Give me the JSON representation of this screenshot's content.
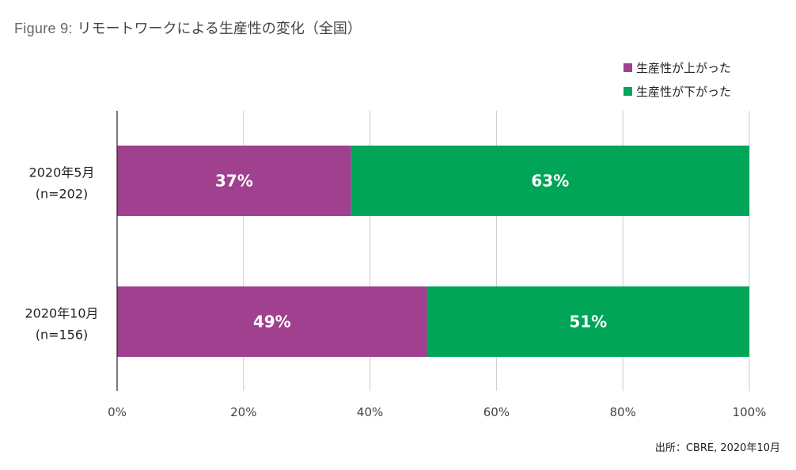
{
  "title": {
    "prefix": "Figure 9:",
    "text": "リモートワークによる生産性の変化（全国）"
  },
  "colors": {
    "up": "#a0408f",
    "down": "#00a558",
    "grid": "#cccccc",
    "axis": "#222222",
    "tick_text": "#444444",
    "label_text": "#222222"
  },
  "chart_data": {
    "type": "bar",
    "orientation": "horizontal",
    "stacked": true,
    "categories": [
      [
        "2020年5月",
        "(n=202)"
      ],
      [
        "2020年10月",
        "(n=156)"
      ]
    ],
    "series": [
      {
        "name": "生産性が上がった",
        "values": [
          37,
          49
        ],
        "labels": [
          "37%",
          "49%"
        ]
      },
      {
        "name": "生産性が下がった",
        "values": [
          63,
          51
        ],
        "labels": [
          "63%",
          "51%"
        ]
      }
    ],
    "xlim": [
      0,
      100
    ],
    "xticks": [
      "0%",
      "20%",
      "40%",
      "60%",
      "80%",
      "100%"
    ],
    "grid": true,
    "legend_position": "top-right"
  },
  "source": "出所：CBRE, 2020年10月"
}
